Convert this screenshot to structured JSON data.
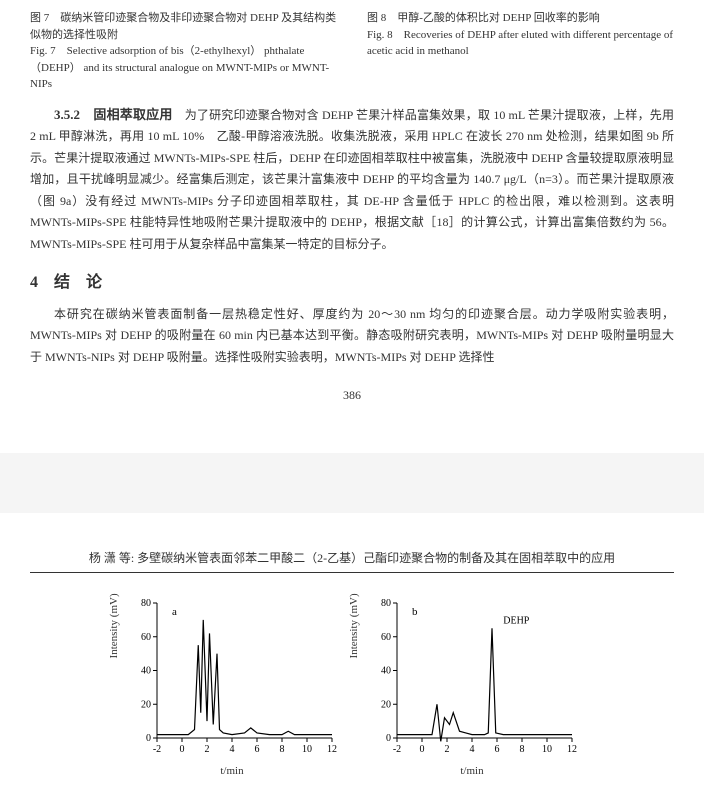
{
  "fig7": {
    "cn": "图 7　碳纳米管印迹聚合物及非印迹聚合物对 DEHP 及其结构类似物的选择性吸附",
    "en": "Fig. 7　Selective adsorption of bis（2-ethylhexyl） phthalate （DEHP） and its structural analogue on MWNT-MIPs or MWNT-NIPs"
  },
  "fig8": {
    "cn": "图 8　甲醇-乙酸的体积比对 DEHP 回收率的影响",
    "en": "Fig. 8　Recoveries of DEHP after eluted with different percentage of acetic acid in methanol"
  },
  "sec352": {
    "title": "3.5.2　固相萃取应用"
  },
  "para1": "为了研究印迹聚合物对含 DEHP 芒果汁样品富集效果，取 10 mL 芒果汁提取液，上样，先用 2 mL 甲醇淋洗，再用 10 mL 10%　乙酸-甲醇溶液洗脱。收集洗脱液，采用 HPLC 在波长 270 nm 处检测，结果如图 9b 所示。芒果汁提取液通过 MWNTs-MIPs-SPE 柱后，DEHP 在印迹固相萃取柱中被富集，洗脱液中 DEHP 含量较提取原液明显增加，且干扰峰明显减少。经富集后测定，该芒果汁富集液中 DEHP 的平均含量为 140.7 μg/L（n=3）。而芒果汁提取原液（图 9a）没有经过 MWNTs-MIPs 分子印迹固相萃取柱，其 DE-HP 含量低于 HPLC 的检出限，难以检测到。这表明 MWNTs-MIPs-SPE 柱能特异性地吸附芒果汁提取液中的 DEHP，根据文献［18］的计算公式，计算出富集倍数约为 56。MWNTs-MIPs-SPE 柱可用于从复杂样品中富集某一特定的目标分子。",
  "sec4": {
    "title": "4　结　论"
  },
  "para2": "本研究在碳纳米管表面制备一层热稳定性好、厚度约为 20～30 nm 均匀的印迹聚合层。动力学吸附实验表明，MWNTs-MIPs 对 DEHP 的吸附量在 60 min 内已基本达到平衡。静态吸附研究表明，MWNTs-MIPs 对 DEHP 吸附量明显大于 MWNTs-NIPs 对 DEHP 吸附量。选择性吸附实验表明，MWNTs-MIPs 对 DEHP 选择性",
  "pagenum": "386",
  "header2": "杨 潇 等: 多壁碳纳米管表面邻苯二甲酸二（2-乙基）己酯印迹聚合物的制备及其在固相萃取中的应用",
  "chart_a": {
    "type": "line",
    "label": "a",
    "xlim": [
      -2,
      12
    ],
    "ylim": [
      0,
      80
    ],
    "xticks": [
      -2,
      0,
      2,
      4,
      6,
      8,
      10,
      12
    ],
    "yticks": [
      0,
      20,
      40,
      60,
      80
    ],
    "ylabel": "Intensity (mV)",
    "xlabel": "t/min",
    "line_color": "#000000",
    "axis_color": "#000000",
    "background": "#ffffff",
    "font_family": "Times New Roman",
    "font_size": 10,
    "data": [
      [
        -2,
        2
      ],
      [
        -1,
        2
      ],
      [
        0,
        2
      ],
      [
        0.5,
        2
      ],
      [
        1,
        5
      ],
      [
        1.3,
        55
      ],
      [
        1.5,
        15
      ],
      [
        1.7,
        70
      ],
      [
        2,
        10
      ],
      [
        2.2,
        62
      ],
      [
        2.5,
        8
      ],
      [
        2.8,
        50
      ],
      [
        3,
        5
      ],
      [
        3.3,
        3
      ],
      [
        4,
        2
      ],
      [
        5,
        3
      ],
      [
        5.5,
        6
      ],
      [
        6,
        3
      ],
      [
        7,
        2
      ],
      [
        8,
        2
      ],
      [
        8.5,
        4
      ],
      [
        9,
        2
      ],
      [
        10,
        2
      ],
      [
        11,
        2
      ],
      [
        12,
        2
      ]
    ]
  },
  "chart_b": {
    "type": "line",
    "label": "b",
    "dehp_label": "DEHP",
    "xlim": [
      -2,
      12
    ],
    "ylim": [
      0,
      80
    ],
    "xticks": [
      -2,
      0,
      2,
      4,
      6,
      8,
      10,
      12
    ],
    "yticks": [
      0,
      20,
      40,
      60,
      80
    ],
    "ylabel": "Intensity (mV)",
    "xlabel": "t/min",
    "line_color": "#000000",
    "axis_color": "#000000",
    "background": "#ffffff",
    "font_family": "Times New Roman",
    "font_size": 10,
    "data": [
      [
        -2,
        2
      ],
      [
        -1,
        2
      ],
      [
        0,
        2
      ],
      [
        0.8,
        2
      ],
      [
        1.2,
        20
      ],
      [
        1.5,
        -2
      ],
      [
        1.8,
        12
      ],
      [
        2.2,
        8
      ],
      [
        2.5,
        15
      ],
      [
        3,
        4
      ],
      [
        3.5,
        3
      ],
      [
        4,
        2
      ],
      [
        5,
        2
      ],
      [
        5.3,
        3
      ],
      [
        5.6,
        65
      ],
      [
        5.9,
        3
      ],
      [
        6.5,
        2
      ],
      [
        8,
        2
      ],
      [
        10,
        2
      ],
      [
        12,
        2
      ]
    ]
  }
}
